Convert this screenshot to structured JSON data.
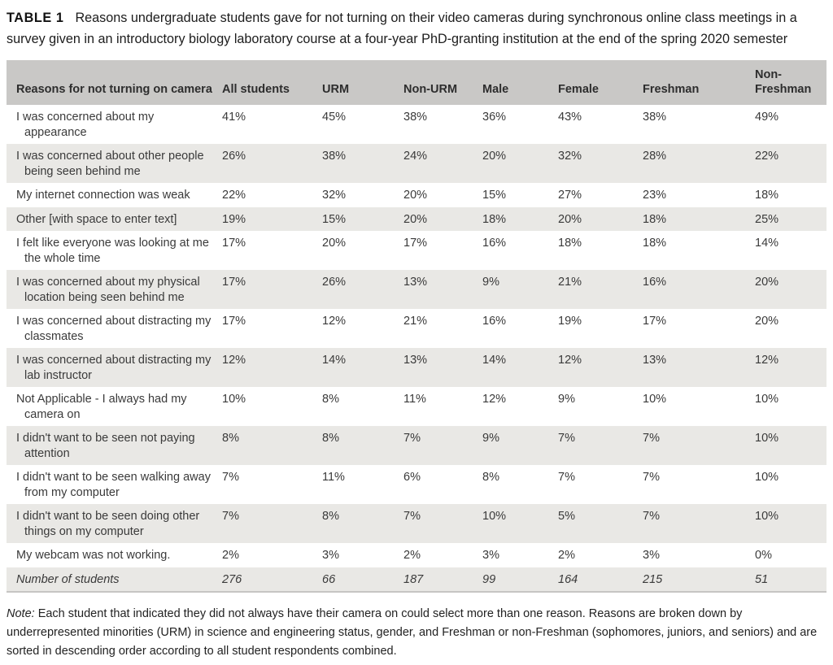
{
  "table": {
    "label": "TABLE 1",
    "caption": "Reasons undergraduate students gave for not turning on their video cameras during synchronous online class meetings in a survey given in an introductory biology laboratory course at a four-year PhD-granting institution at the end of the spring 2020 semester",
    "columns": [
      "Reasons for not turning on camera",
      "All students",
      "URM",
      "Non-URM",
      "Male",
      "Female",
      "Freshman",
      "Non-Freshman"
    ],
    "rows": [
      {
        "reason": "I was concerned about my appearance",
        "values": [
          "41%",
          "45%",
          "38%",
          "36%",
          "43%",
          "38%",
          "49%"
        ]
      },
      {
        "reason": "I was concerned about other people being seen behind me",
        "values": [
          "26%",
          "38%",
          "24%",
          "20%",
          "32%",
          "28%",
          "22%"
        ]
      },
      {
        "reason": "My internet connection was weak",
        "values": [
          "22%",
          "32%",
          "20%",
          "15%",
          "27%",
          "23%",
          "18%"
        ]
      },
      {
        "reason": "Other [with space to enter text]",
        "values": [
          "19%",
          "15%",
          "20%",
          "18%",
          "20%",
          "18%",
          "25%"
        ]
      },
      {
        "reason": "I felt like everyone was looking at me the whole time",
        "values": [
          "17%",
          "20%",
          "17%",
          "16%",
          "18%",
          "18%",
          "14%"
        ]
      },
      {
        "reason": "I was concerned about my physical location being seen behind me",
        "values": [
          "17%",
          "26%",
          "13%",
          "9%",
          "21%",
          "16%",
          "20%"
        ]
      },
      {
        "reason": "I was concerned about distracting my classmates",
        "values": [
          "17%",
          "12%",
          "21%",
          "16%",
          "19%",
          "17%",
          "20%"
        ]
      },
      {
        "reason": "I was concerned about distracting my lab instructor",
        "values": [
          "12%",
          "14%",
          "13%",
          "14%",
          "12%",
          "13%",
          "12%"
        ]
      },
      {
        "reason": "Not Applicable - I always had my camera on",
        "values": [
          "10%",
          "8%",
          "11%",
          "12%",
          "9%",
          "10%",
          "10%"
        ]
      },
      {
        "reason": "I didn't want to be seen not paying attention",
        "values": [
          "8%",
          "8%",
          "7%",
          "9%",
          "7%",
          "7%",
          "10%"
        ]
      },
      {
        "reason": "I didn't want to be seen walking away from my computer",
        "values": [
          "7%",
          "11%",
          "6%",
          "8%",
          "7%",
          "7%",
          "10%"
        ]
      },
      {
        "reason": "I didn't want to be seen doing other things on my computer",
        "values": [
          "7%",
          "8%",
          "7%",
          "10%",
          "5%",
          "7%",
          "10%"
        ]
      },
      {
        "reason": "My webcam was not working.",
        "values": [
          "2%",
          "3%",
          "2%",
          "3%",
          "2%",
          "3%",
          "0%"
        ]
      },
      {
        "reason": "Number of students",
        "values": [
          "276",
          "66",
          "187",
          "99",
          "164",
          "215",
          "51"
        ],
        "italic": true
      }
    ],
    "note_label": "Note:",
    "note_text": " Each student that indicated they did not always have their camera on could select more than one reason. Reasons are broken down by underrepresented minorities (URM) in science and engineering status, gender, and Freshman or non-Freshman (sophomores, juniors, and seniors) and are sorted in descending order according to all student respondents combined."
  }
}
